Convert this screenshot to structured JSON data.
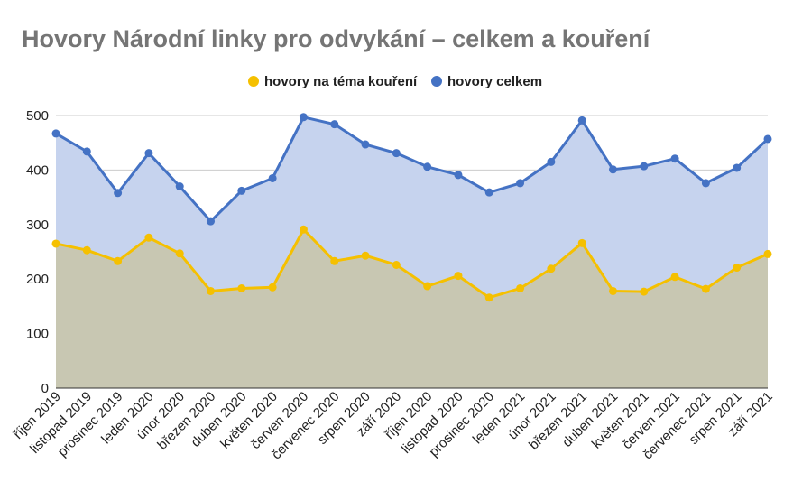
{
  "chart_data": {
    "type": "area",
    "title": "Hovory Národní linky pro odvykání – celkem a kouření",
    "categories": [
      "říjen 2019",
      "listopad 2019",
      "prosinec 2019",
      "leden 2020",
      "únor 2020",
      "březen 2020",
      "duben 2020",
      "květen 2020",
      "červen 2020",
      "červenec 2020",
      "srpen 2020",
      "září 2020",
      "říjen 2020",
      "listopad 2020",
      "prosinec 2020",
      "leden 2021",
      "únor 2021",
      "březen 2021",
      "duben 2021",
      "květen 2021",
      "červen 2021",
      "červenec 2021",
      "srpen 2021",
      "září 2021"
    ],
    "series": [
      {
        "name": "hovory na téma kouření",
        "color": "#f5c000",
        "fill": "#c8c7b2",
        "values": [
          265,
          253,
          233,
          276,
          247,
          178,
          183,
          185,
          291,
          233,
          243,
          226,
          187,
          206,
          166,
          183,
          219,
          266,
          178,
          177,
          204,
          182,
          221,
          246
        ]
      },
      {
        "name": "hovory celkem",
        "color": "#4472c4",
        "fill": "#c6d3ee",
        "values": [
          467,
          434,
          358,
          431,
          370,
          306,
          362,
          385,
          497,
          484,
          447,
          431,
          406,
          391,
          359,
          376,
          415,
          491,
          401,
          407,
          421,
          376,
          404,
          457
        ]
      }
    ],
    "xlabel": "",
    "ylabel": "",
    "ylim": [
      0,
      500
    ],
    "yticks": [
      0,
      100,
      200,
      300,
      400,
      500
    ],
    "grid": true,
    "legend_position": "top-center"
  }
}
